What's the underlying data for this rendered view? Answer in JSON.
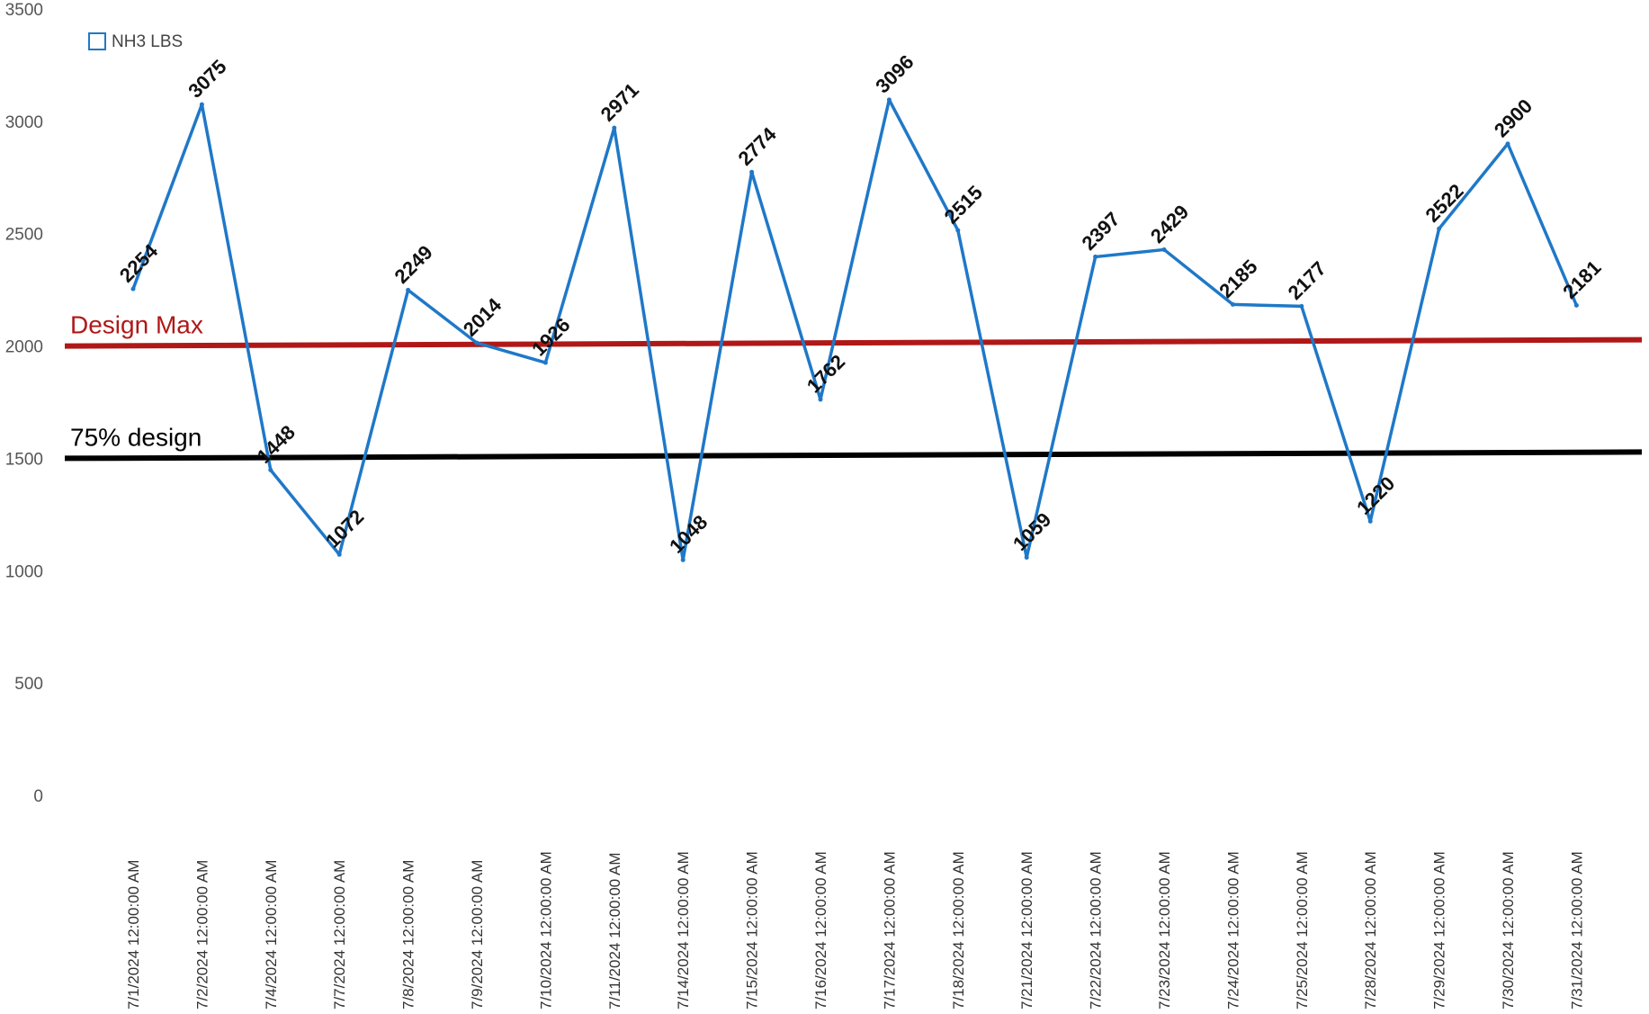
{
  "chart_data": {
    "type": "line",
    "categories": [
      "7/1/2024 12:00:00 AM",
      "7/2/2024 12:00:00 AM",
      "7/4/2024 12:00:00 AM",
      "7/7/2024 12:00:00 AM",
      "7/8/2024 12:00:00 AM",
      "7/9/2024 12:00:00 AM",
      "7/10/2024 12:00:00 AM",
      "7/11/2024 12:00:00 AM",
      "7/14/2024 12:00:00 AM",
      "7/15/2024 12:00:00 AM",
      "7/16/2024 12:00:00 AM",
      "7/17/2024 12:00:00 AM",
      "7/18/2024 12:00:00 AM",
      "7/21/2024 12:00:00 AM",
      "7/22/2024 12:00:00 AM",
      "7/23/2024 12:00:00 AM",
      "7/24/2024 12:00:00 AM",
      "7/25/2024 12:00:00 AM",
      "7/28/2024 12:00:00 AM",
      "7/29/2024 12:00:00 AM",
      "7/30/2024 12:00:00 AM",
      "7/31/2024 12:00:00 AM"
    ],
    "series": [
      {
        "name": "NH3 LBS",
        "color": "#1f78c8",
        "values": [
          2254,
          3075,
          1448,
          1072,
          2249,
          2014,
          1926,
          2971,
          1048,
          2774,
          1762,
          3096,
          2515,
          1059,
          2397,
          2429,
          2185,
          2177,
          1220,
          2522,
          2900,
          2181
        ]
      }
    ],
    "reference_lines": [
      {
        "label": "Design Max",
        "value": 2000,
        "color": "#b01818"
      },
      {
        "label": "75% design",
        "value": 1500,
        "color": "#000000"
      }
    ],
    "yticks": [
      0,
      500,
      1000,
      1500,
      2000,
      2500,
      3000,
      3500
    ],
    "ylim": [
      0,
      3500
    ],
    "legend": {
      "position": "top-left"
    },
    "grid": false
  }
}
